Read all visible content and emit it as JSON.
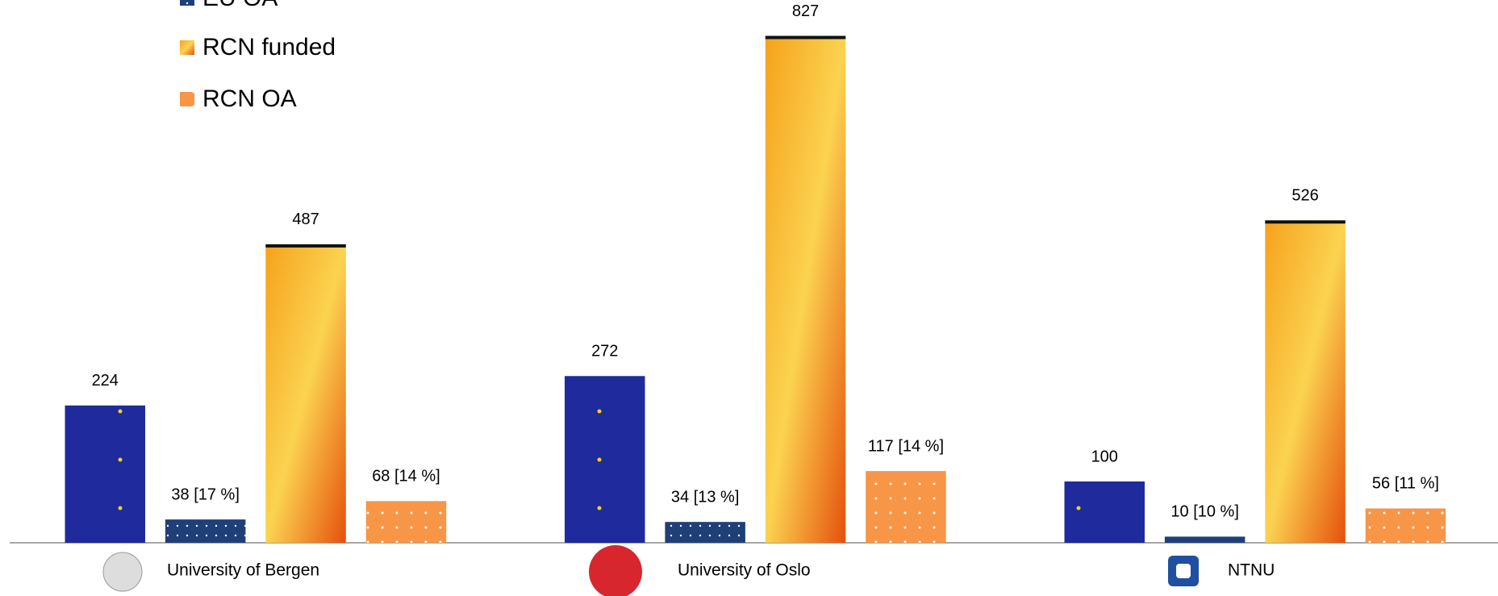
{
  "chart_data": {
    "type": "bar",
    "categories": [
      "University of Bergen",
      "University of Oslo",
      "NTNU"
    ],
    "series": [
      {
        "color": "#1f2a9c",
        "values": [
          224,
          272,
          100
        ]
      },
      {
        "name": "EU OA",
        "color": "#1f3f78",
        "values": [
          38,
          34,
          10
        ],
        "value_labels": [
          "38 [17 %]",
          "34 [13 %]",
          "10 [10 %]"
        ]
      },
      {
        "name": "RCN funded",
        "color": "#f08a10",
        "values": [
          487,
          827,
          526
        ]
      },
      {
        "name": "RCN OA",
        "color": "#f79646",
        "values": [
          68,
          117,
          56
        ],
        "value_labels": [
          "68 [14 %]",
          "117 [14 %]",
          "56 [11 %]"
        ]
      }
    ]
  }
}
